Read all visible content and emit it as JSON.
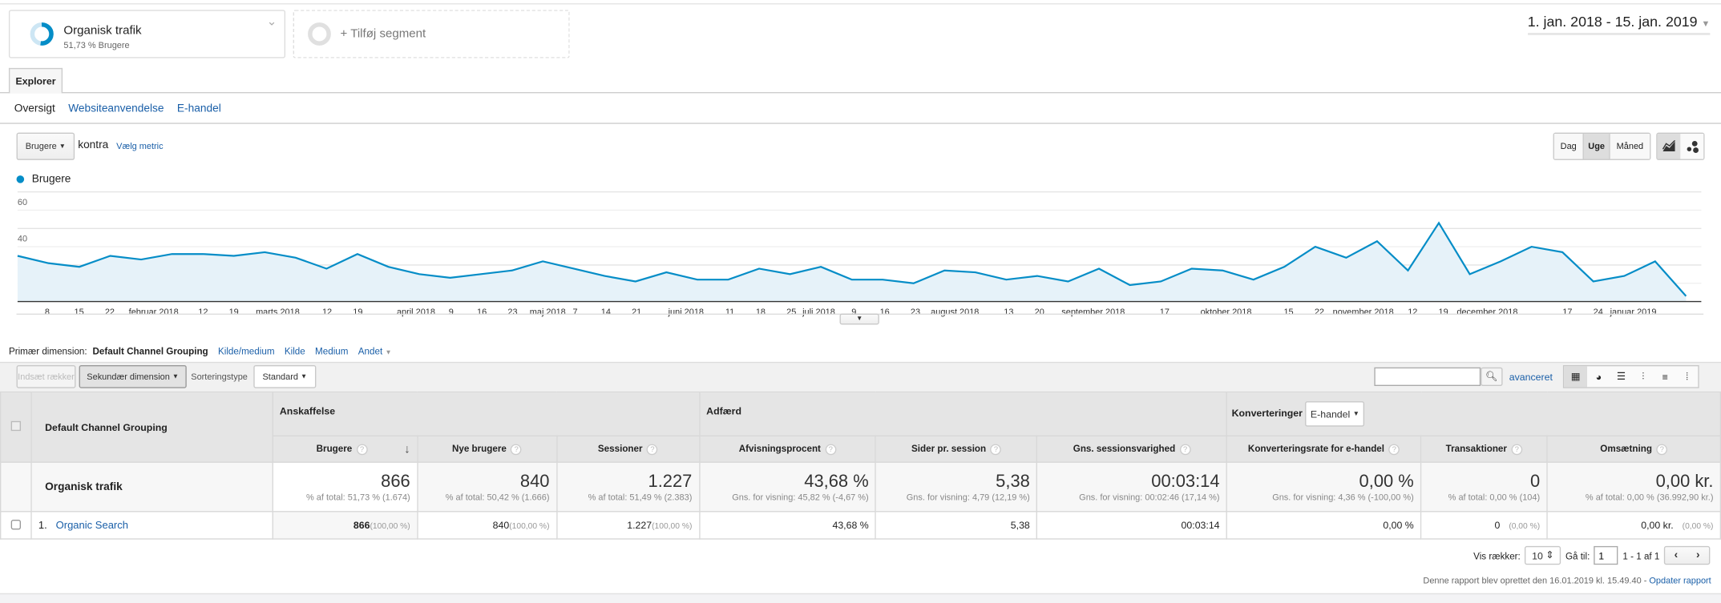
{
  "segments": {
    "active": {
      "name": "Organisk trafik",
      "sub": "51,73 % Brugere"
    },
    "add": "+ Tilføj segment"
  },
  "date_range": "1. jan. 2018 - 15. jan. 2019",
  "tab": "Explorer",
  "subtabs": [
    "Oversigt",
    "Websiteanvendelse",
    "E-handel"
  ],
  "metric": {
    "selected": "Brugere",
    "versus": "kontra",
    "choose": "Vælg metric"
  },
  "granularity": {
    "options": [
      "Dag",
      "Uge",
      "Måned"
    ],
    "selected": "Uge"
  },
  "chart_data": {
    "type": "area",
    "legend": "Brugere",
    "series": [
      {
        "name": "Brugere",
        "color": "#058dc7",
        "values": [
          25,
          21,
          19,
          25,
          23,
          26,
          26,
          25,
          27,
          24,
          18,
          26,
          19,
          15,
          13,
          15,
          17,
          22,
          18,
          14,
          11,
          16,
          12,
          12,
          18,
          15,
          19,
          12,
          12,
          10,
          17,
          16,
          12,
          14,
          11,
          18,
          9,
          11,
          18,
          17,
          12,
          19,
          30,
          24,
          33,
          17,
          43,
          15,
          22,
          30,
          27,
          11,
          14,
          22,
          3
        ]
      }
    ],
    "ylim": [
      0,
      60
    ],
    "yticks": [
      "20",
      "40",
      "60"
    ],
    "x_labels": [
      "8",
      "15",
      "22",
      "februar 2018",
      "12",
      "19",
      "marts 2018",
      "12",
      "19",
      "april 2018",
      "9",
      "16",
      "23",
      "maj 2018",
      "7",
      "14",
      "21",
      "juni 2018",
      "11",
      "18",
      "25",
      "juli 2018",
      "9",
      "16",
      "23",
      "august 2018",
      "13",
      "20",
      "september 2018",
      "17",
      "oktober 2018",
      "15",
      "22",
      "november 2018",
      "12",
      "19",
      "december 2018",
      "17",
      "24",
      "januar 2019"
    ],
    "grid": true
  },
  "dimension": {
    "label": "Primær dimension:",
    "active": "Default Channel Grouping",
    "links": [
      "Kilde/medium",
      "Kilde",
      "Medium",
      "Andet"
    ]
  },
  "toolbar": {
    "insert_rows": "Indsæt rækker",
    "secondary": "Sekundær dimension",
    "sort_label": "Sorteringstype",
    "sort_value": "Standard",
    "search_placeholder": "",
    "advanced": "avanceret"
  },
  "table": {
    "dim_header": "Default Channel Grouping",
    "groups": [
      "Anskaffelse",
      "Adfærd",
      "Konverteringer"
    ],
    "conv_select": "E-handel",
    "columns": [
      "Brugere",
      "Nye brugere",
      "Sessioner",
      "Afvisningsprocent",
      "Sider pr. session",
      "Gns. sessionsvarighed",
      "Konverteringsrate for e-handel",
      "Transaktioner",
      "Omsætning"
    ],
    "total": {
      "label": "Organisk trafik",
      "values": [
        "866",
        "840",
        "1.227",
        "43,68 %",
        "5,38",
        "00:03:14",
        "0,00 %",
        "0",
        "0,00 kr."
      ],
      "subs": [
        "% af total: 51,73 % (1.674)",
        "% af total: 50,42 % (1.666)",
        "% af total: 51,49 % (2.383)",
        "Gns. for visning: 45,82 % (-4,67 %)",
        "Gns. for visning: 4,79 (12,19 %)",
        "Gns. for visning: 00:02:46 (17,14 %)",
        "Gns. for visning: 4,36 % (-100,00 %)",
        "% af total: 0,00 % (104)",
        "% af total: 0,00 % (36.992,90 kr.)"
      ]
    },
    "rows": [
      {
        "index": "1.",
        "name": "Organic Search",
        "values": [
          "866",
          "840",
          "1.227",
          "43,68 %",
          "5,38",
          "00:03:14",
          "0,00 %",
          "0",
          "0,00 kr."
        ],
        "pcts": [
          "(100,00 %)",
          "(100,00 %)",
          "(100,00 %)",
          "",
          "",
          "",
          "",
          "(0,00 %)",
          "(0,00 %)"
        ]
      }
    ]
  },
  "pagination": {
    "rows_label": "Vis rækker:",
    "rows_value": "10",
    "goto_label": "Gå til:",
    "goto_value": "1",
    "range": "1 - 1 af 1"
  },
  "footer": {
    "text": "Denne rapport blev oprettet den 16.01.2019 kl. 15.49.40 - ",
    "link": "Opdater rapport"
  }
}
